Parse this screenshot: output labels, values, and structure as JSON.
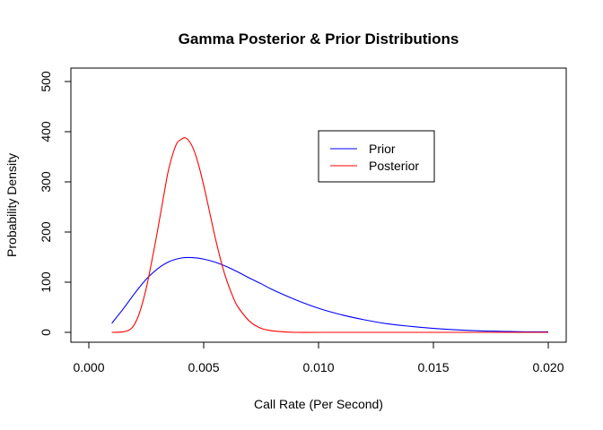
{
  "chart_data": {
    "type": "line",
    "title": "Gamma Posterior & Prior Distributions",
    "xlabel": "Call Rate (Per Second)",
    "ylabel": "Probability Density",
    "xlim": [
      0.0,
      0.02
    ],
    "ylim": [
      0,
      500
    ],
    "x_ticks": [
      "0.000",
      "0.005",
      "0.010",
      "0.015",
      "0.020"
    ],
    "y_ticks": [
      "0",
      "100",
      "200",
      "300",
      "400",
      "500"
    ],
    "legend_position": "top-right",
    "series": [
      {
        "name": "Prior",
        "color": "#0000ff",
        "x": [
          0.001,
          0.0015,
          0.002,
          0.0025,
          0.003,
          0.0035,
          0.004,
          0.0045,
          0.005,
          0.0055,
          0.006,
          0.0065,
          0.007,
          0.0075,
          0.008,
          0.009,
          0.01,
          0.011,
          0.012,
          0.013,
          0.014,
          0.015,
          0.016,
          0.017,
          0.018,
          0.019,
          0.02
        ],
        "y": [
          18,
          47,
          78,
          106,
          127,
          141,
          148,
          149,
          146,
          140,
          131,
          120,
          108,
          97,
          85,
          65,
          48,
          35,
          25,
          17,
          12,
          8,
          5,
          3,
          2,
          1,
          1
        ]
      },
      {
        "name": "Posterior",
        "color": "#ff0000",
        "x": [
          0.001,
          0.0015,
          0.0018,
          0.002,
          0.0022,
          0.0025,
          0.0028,
          0.003,
          0.0033,
          0.0035,
          0.0038,
          0.004,
          0.0042,
          0.0044,
          0.0046,
          0.0048,
          0.005,
          0.0052,
          0.0055,
          0.0058,
          0.006,
          0.0063,
          0.0065,
          0.007,
          0.0075,
          0.008,
          0.0085,
          0.009,
          0.01,
          0.012,
          0.015,
          0.02
        ],
        "y": [
          0,
          1,
          6,
          17,
          38,
          88,
          156,
          205,
          283,
          330,
          374,
          384,
          388,
          379,
          360,
          330,
          293,
          252,
          189,
          134,
          104,
          68,
          50,
          22,
          8,
          3,
          1,
          0,
          0,
          0,
          0,
          0
        ]
      }
    ]
  }
}
